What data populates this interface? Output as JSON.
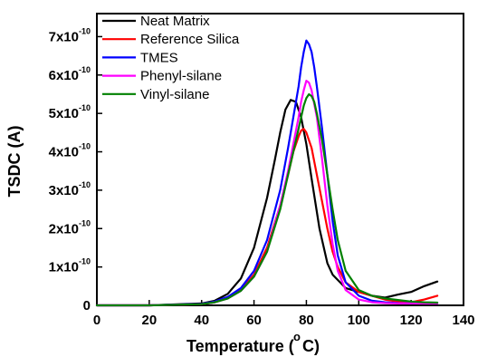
{
  "chart_data": {
    "type": "line",
    "title": "",
    "xlabel": "Temperature (",
    "xlabel_degree": "o",
    "xlabel_unit": "C)",
    "ylabel": "TSDC (A)",
    "xlim": [
      0,
      140
    ],
    "ylim": [
      0,
      7.6e-10
    ],
    "grid": false,
    "legend_position": "top-left",
    "x_ticks": [
      {
        "value": 0,
        "label": "0"
      },
      {
        "value": 20,
        "label": "20"
      },
      {
        "value": 40,
        "label": "40"
      },
      {
        "value": 60,
        "label": "60"
      },
      {
        "value": 80,
        "label": "80"
      },
      {
        "value": 100,
        "label": "100"
      },
      {
        "value": 120,
        "label": "120"
      },
      {
        "value": 140,
        "label": "140"
      }
    ],
    "y_ticks": [
      {
        "value": 0,
        "label": "0",
        "exp": ""
      },
      {
        "value": 1e-10,
        "label": "1x10",
        "exp": "-10"
      },
      {
        "value": 2e-10,
        "label": "2x10",
        "exp": "-10"
      },
      {
        "value": 3e-10,
        "label": "3x10",
        "exp": "-10"
      },
      {
        "value": 4e-10,
        "label": "4x10",
        "exp": "-10"
      },
      {
        "value": 5e-10,
        "label": "5x10",
        "exp": "-10"
      },
      {
        "value": 6e-10,
        "label": "6x10",
        "exp": "-10"
      },
      {
        "value": 7e-10,
        "label": "7x10",
        "exp": "-10"
      }
    ],
    "series": [
      {
        "name": "Neat Matrix",
        "color": "#000000",
        "x": [
          0,
          20,
          40,
          45,
          50,
          55,
          60,
          65,
          68,
          70,
          72,
          74,
          76,
          78,
          80,
          82,
          85,
          88,
          90,
          95,
          100,
          105,
          110,
          115,
          120,
          125,
          130
        ],
        "y": [
          0,
          0,
          5e-12,
          1.2e-11,
          3e-11,
          7e-11,
          1.5e-10,
          2.8e-10,
          3.8e-10,
          4.5e-10,
          5.1e-10,
          5.35e-10,
          5.3e-10,
          4.9e-10,
          4.2e-10,
          3.3e-10,
          2e-10,
          1.1e-10,
          8e-11,
          4.5e-11,
          3.5e-11,
          2.5e-11,
          2e-11,
          2.8e-11,
          3.5e-11,
          5e-11,
          6.2e-11
        ]
      },
      {
        "name": "Reference Silica",
        "color": "#ff0000",
        "x": [
          0,
          20,
          40,
          45,
          50,
          55,
          60,
          65,
          70,
          73,
          75,
          77,
          78,
          79,
          80,
          82,
          84,
          86,
          88,
          90,
          92,
          95,
          100,
          105,
          110,
          115,
          120,
          125,
          130
        ],
        "y": [
          0,
          0,
          3e-12,
          8e-12,
          2e-11,
          4e-11,
          8e-11,
          1.5e-10,
          2.6e-10,
          3.4e-10,
          4e-10,
          4.4e-10,
          4.55e-10,
          4.6e-10,
          4.5e-10,
          4.1e-10,
          3.4e-10,
          2.7e-10,
          2e-10,
          1.4e-10,
          1e-10,
          6e-11,
          3.5e-11,
          2.5e-11,
          1.5e-11,
          1e-11,
          8e-12,
          1.5e-11,
          2.5e-11
        ]
      },
      {
        "name": "TMES",
        "color": "#0000ff",
        "x": [
          0,
          20,
          40,
          45,
          50,
          55,
          60,
          65,
          70,
          73,
          75,
          77,
          78,
          79,
          80,
          81,
          82,
          83,
          84,
          86,
          88,
          90,
          92,
          95,
          100,
          105,
          110,
          115,
          120,
          125,
          130
        ],
        "y": [
          0,
          0,
          4e-12,
          1e-11,
          2.2e-11,
          4.5e-11,
          9e-11,
          1.7e-10,
          3e-10,
          4.1e-10,
          4.9e-10,
          5.7e-10,
          6.2e-10,
          6.6e-10,
          6.9e-10,
          6.8e-10,
          6.6e-10,
          6.2e-10,
          5.7e-10,
          4.6e-10,
          3.4e-10,
          2.2e-10,
          1.3e-10,
          6e-11,
          2.5e-11,
          1.2e-11,
          8e-12,
          6e-12,
          5e-12,
          5e-12,
          5e-12
        ]
      },
      {
        "name": "Phenyl-silane",
        "color": "#ff00ff",
        "x": [
          0,
          20,
          40,
          45,
          50,
          55,
          60,
          65,
          70,
          73,
          75,
          77,
          78,
          79,
          80,
          81,
          82,
          84,
          86,
          88,
          90,
          92,
          95,
          100,
          105,
          110,
          115,
          120,
          125,
          130
        ],
        "y": [
          0,
          0,
          3e-12,
          8e-12,
          1.8e-11,
          3.8e-11,
          7.5e-11,
          1.4e-10,
          2.6e-10,
          3.5e-10,
          4.2e-10,
          4.9e-10,
          5.3e-10,
          5.6e-10,
          5.85e-10,
          5.8e-10,
          5.6e-10,
          4.9e-10,
          3.8e-10,
          2.6e-10,
          1.6e-10,
          9e-11,
          4e-11,
          1.5e-11,
          8e-12,
          6e-12,
          5e-12,
          5e-12,
          5e-12,
          5e-12
        ]
      },
      {
        "name": "Vinyl-silane",
        "color": "#008000",
        "x": [
          0,
          20,
          40,
          45,
          50,
          55,
          60,
          65,
          70,
          73,
          75,
          77,
          79,
          80,
          81,
          82,
          83,
          84,
          86,
          88,
          90,
          92,
          95,
          100,
          105,
          110,
          115,
          120,
          125,
          130
        ],
        "y": [
          0,
          0,
          3e-12,
          8e-12,
          1.8e-11,
          3.8e-11,
          7.5e-11,
          1.4e-10,
          2.5e-10,
          3.4e-10,
          4e-10,
          4.6e-10,
          5.2e-10,
          5.4e-10,
          5.5e-10,
          5.45e-10,
          5.3e-10,
          5e-10,
          4.3e-10,
          3.4e-10,
          2.5e-10,
          1.7e-10,
          9e-11,
          4e-11,
          2.5e-11,
          1.8e-11,
          1.4e-11,
          1e-11,
          8e-12,
          7e-12
        ]
      }
    ]
  }
}
